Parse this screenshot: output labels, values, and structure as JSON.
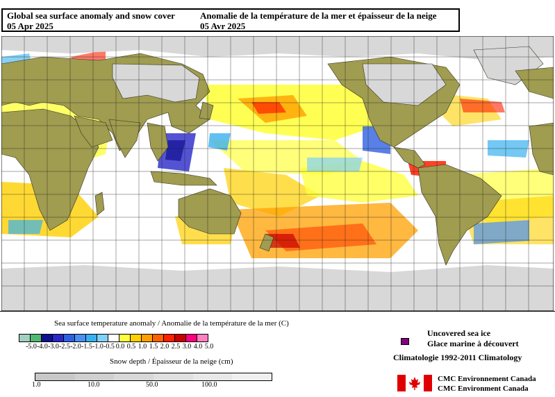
{
  "header": {
    "title_en": "Global sea surface anomaly and snow cover",
    "date_en": "05 Apr 2025",
    "title_fr": "Anomalie de la température de la mer et épaisseur de la neige",
    "date_fr": "05 Avr 2025"
  },
  "sst_legend": {
    "title": "Sea surface temperature anomaly / Anomalie de la température de la mer (C)",
    "labels": [
      "-5.0",
      "-4.0",
      "-3.0",
      "-2.5",
      "-2.0",
      "-1.5",
      "-1.0",
      "-0.5",
      "0.0",
      "0.5",
      "1.0",
      "1.5",
      "2.0",
      "2.5",
      "3.0",
      "4.0",
      "5.0"
    ],
    "colors": [
      "#a0d0c0",
      "#50b870",
      "#101090",
      "#2828c8",
      "#3060e0",
      "#4890f0",
      "#38b0f0",
      "#80d0f8",
      "#ffffff",
      "#ffff40",
      "#ffd000",
      "#ffa000",
      "#ff6000",
      "#ff2000",
      "#c80000",
      "#ff0080",
      "#ff80c0"
    ]
  },
  "snow_legend": {
    "title": "Snow depth / Épaisseur de la neige (cm)",
    "labels": [
      "1.0",
      "10.0",
      "50.0",
      "100.0"
    ],
    "colors": [
      "#c8c8c8",
      "#d0d0d0",
      "#d8d8d8",
      "#e0e0e0",
      "#e8e8e8",
      "#f0f0f0"
    ]
  },
  "sea_ice": {
    "label_en": "Uncovered sea ice",
    "label_fr": "Glace marine à découvert",
    "color": "#800080"
  },
  "climatology": "Climatologie 1992-2011 Climatology",
  "credits": {
    "line1": "CMC Environnement Canada",
    "line2": "CMC Environment Canada"
  },
  "map": {
    "land_color": "#a09c50",
    "snow_color": "#d8d8d8",
    "ocean_neutral": "#ffffff",
    "grid_color": "#202020"
  }
}
